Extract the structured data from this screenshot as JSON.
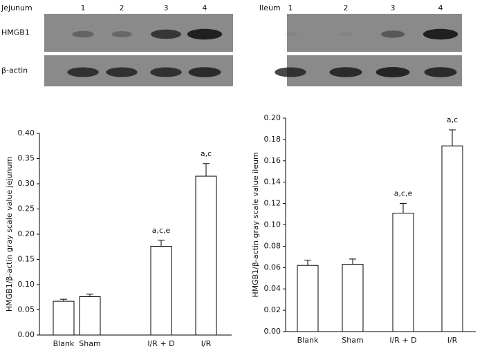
{
  "blots": [
    {
      "title": "Jejunum",
      "lanes": [
        "1",
        "2",
        "3",
        "4"
      ],
      "rows": [
        "HMGB1",
        "β-actin"
      ]
    },
    {
      "title": "Ileum",
      "lanes": [
        "1",
        "2",
        "3",
        "4"
      ]
    }
  ],
  "chart_data": [
    {
      "type": "bar",
      "ylabel": "HMGB1/β-actin gray scale value jejunum",
      "categories": [
        "Blank",
        "Sham",
        "I/R + D",
        "I/R"
      ],
      "values": [
        0.067,
        0.076,
        0.176,
        0.315
      ],
      "errors": [
        0.004,
        0.005,
        0.012,
        0.025
      ],
      "value_annotations": [
        null,
        null,
        "a,c,e",
        "a,c"
      ],
      "color": "#ffffff",
      "ylim": [
        0,
        0.4
      ],
      "yticks": [
        {
          "value": 0,
          "label": "0.00"
        },
        {
          "value": 0.05,
          "label": "0.05"
        },
        {
          "value": 0.1,
          "label": "0.10"
        },
        {
          "value": 0.15,
          "label": "0.15"
        },
        {
          "value": 0.2,
          "label": "0.20"
        },
        {
          "value": 0.25,
          "label": "0.25"
        },
        {
          "value": 0.3,
          "label": "0.30"
        },
        {
          "value": 0.35,
          "label": "0.35"
        },
        {
          "value": 0.4,
          "label": "0.40"
        }
      ]
    },
    {
      "type": "bar",
      "ylabel": "HMGB1/β-actin gray scale value ileum",
      "categories": [
        "Blank",
        "Sham",
        "I/R + D",
        "I/R"
      ],
      "values": [
        0.062,
        0.063,
        0.111,
        0.174
      ],
      "errors": [
        0.005,
        0.005,
        0.009,
        0.015
      ],
      "value_annotations": [
        null,
        null,
        "a,c,e",
        "a,c"
      ],
      "color": "#ffffff",
      "ylim": [
        0,
        0.2
      ],
      "yticks": [
        {
          "value": 0,
          "label": "0.00"
        },
        {
          "value": 0.02,
          "label": "0.02"
        },
        {
          "value": 0.04,
          "label": "0.04"
        },
        {
          "value": 0.06,
          "label": "0.06"
        },
        {
          "value": 0.08,
          "label": "0.08"
        },
        {
          "value": 0.1,
          "label": "0.10"
        },
        {
          "value": 0.12,
          "label": "0.12"
        },
        {
          "value": 0.14,
          "label": "0.14"
        },
        {
          "value": 0.16,
          "label": "0.16"
        },
        {
          "value": 0.18,
          "label": "0.18"
        },
        {
          "value": 0.2,
          "label": "0.20"
        }
      ]
    }
  ]
}
